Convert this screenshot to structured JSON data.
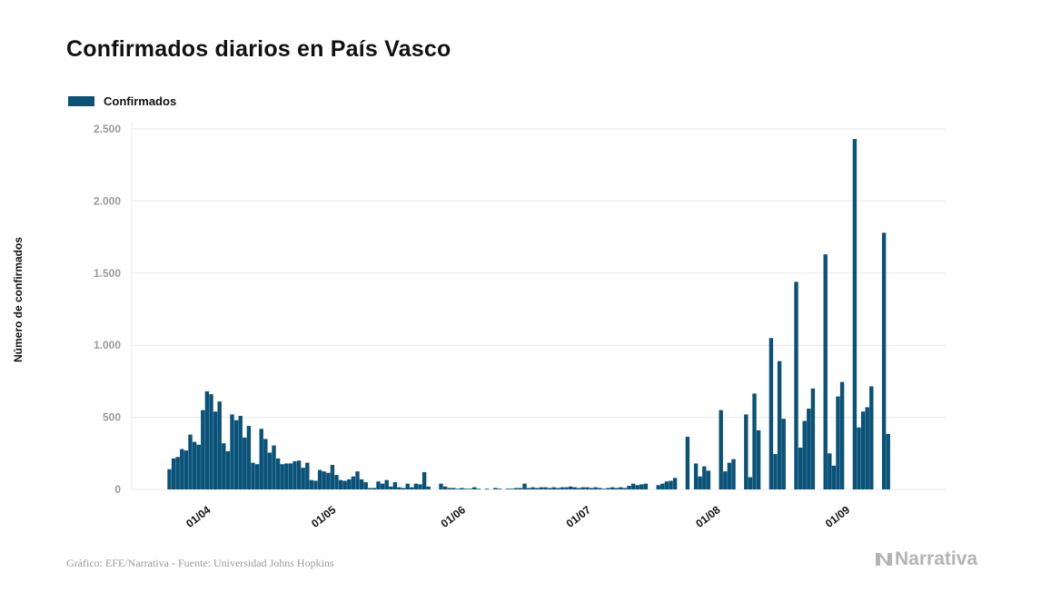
{
  "title": "Confirmados diarios en País Vasco",
  "legend": {
    "label": "Confirmados"
  },
  "footer": {
    "source": "Gráfico: EFE/Narrativa - Fuente: Universidad Johns Hopkins",
    "brand": "Narrativa"
  },
  "colors": {
    "bar": "#0a5278",
    "grid": "#e8e8e8",
    "brand": "#b4b4b4"
  },
  "chart_data": {
    "type": "bar",
    "ylabel": "Número de confirmados",
    "ylim": [
      0,
      2500
    ],
    "yticks": [
      {
        "value": 0,
        "label": "0"
      },
      {
        "value": 500,
        "label": "500"
      },
      {
        "value": 1000,
        "label": "1.000"
      },
      {
        "value": 1500,
        "label": "1.500"
      },
      {
        "value": 2000,
        "label": "2.000"
      },
      {
        "value": 2500,
        "label": "2.500"
      }
    ],
    "xticks": [
      {
        "date": "2020-04-01",
        "label": "01/04"
      },
      {
        "date": "2020-05-01",
        "label": "01/05"
      },
      {
        "date": "2020-06-01",
        "label": "01/06"
      },
      {
        "date": "2020-07-01",
        "label": "01/07"
      },
      {
        "date": "2020-08-01",
        "label": "01/08"
      },
      {
        "date": "2020-09-01",
        "label": "01/09"
      }
    ],
    "grid": "horizontal",
    "legend_position": "top-left",
    "start_date": "2020-03-22",
    "series": [
      {
        "name": "Confirmados",
        "values": [
          140,
          215,
          225,
          280,
          270,
          380,
          330,
          310,
          550,
          680,
          660,
          540,
          610,
          320,
          265,
          520,
          480,
          510,
          360,
          440,
          185,
          175,
          420,
          350,
          255,
          305,
          215,
          175,
          180,
          180,
          195,
          200,
          150,
          185,
          65,
          60,
          135,
          125,
          115,
          170,
          100,
          65,
          60,
          70,
          90,
          125,
          70,
          50,
          10,
          10,
          55,
          40,
          65,
          20,
          50,
          15,
          10,
          40,
          15,
          40,
          35,
          120,
          20,
          0,
          0,
          40,
          20,
          10,
          10,
          5,
          10,
          5,
          5,
          15,
          5,
          0,
          5,
          0,
          10,
          5,
          0,
          5,
          5,
          10,
          10,
          40,
          10,
          15,
          10,
          15,
          15,
          10,
          15,
          10,
          15,
          15,
          20,
          15,
          10,
          15,
          15,
          10,
          15,
          10,
          5,
          10,
          15,
          10,
          15,
          10,
          25,
          40,
          30,
          35,
          40,
          0,
          0,
          30,
          40,
          55,
          60,
          80,
          0,
          0,
          365,
          0,
          180,
          90,
          160,
          130,
          0,
          0,
          550,
          125,
          185,
          210,
          0,
          0,
          520,
          85,
          665,
          410,
          0,
          0,
          1050,
          245,
          890,
          490,
          0,
          0,
          1440,
          290,
          475,
          560,
          700,
          0,
          0,
          1630,
          250,
          165,
          645,
          745,
          0,
          0,
          2430,
          430,
          540,
          570,
          715,
          0,
          0,
          1780,
          385
        ]
      }
    ]
  }
}
